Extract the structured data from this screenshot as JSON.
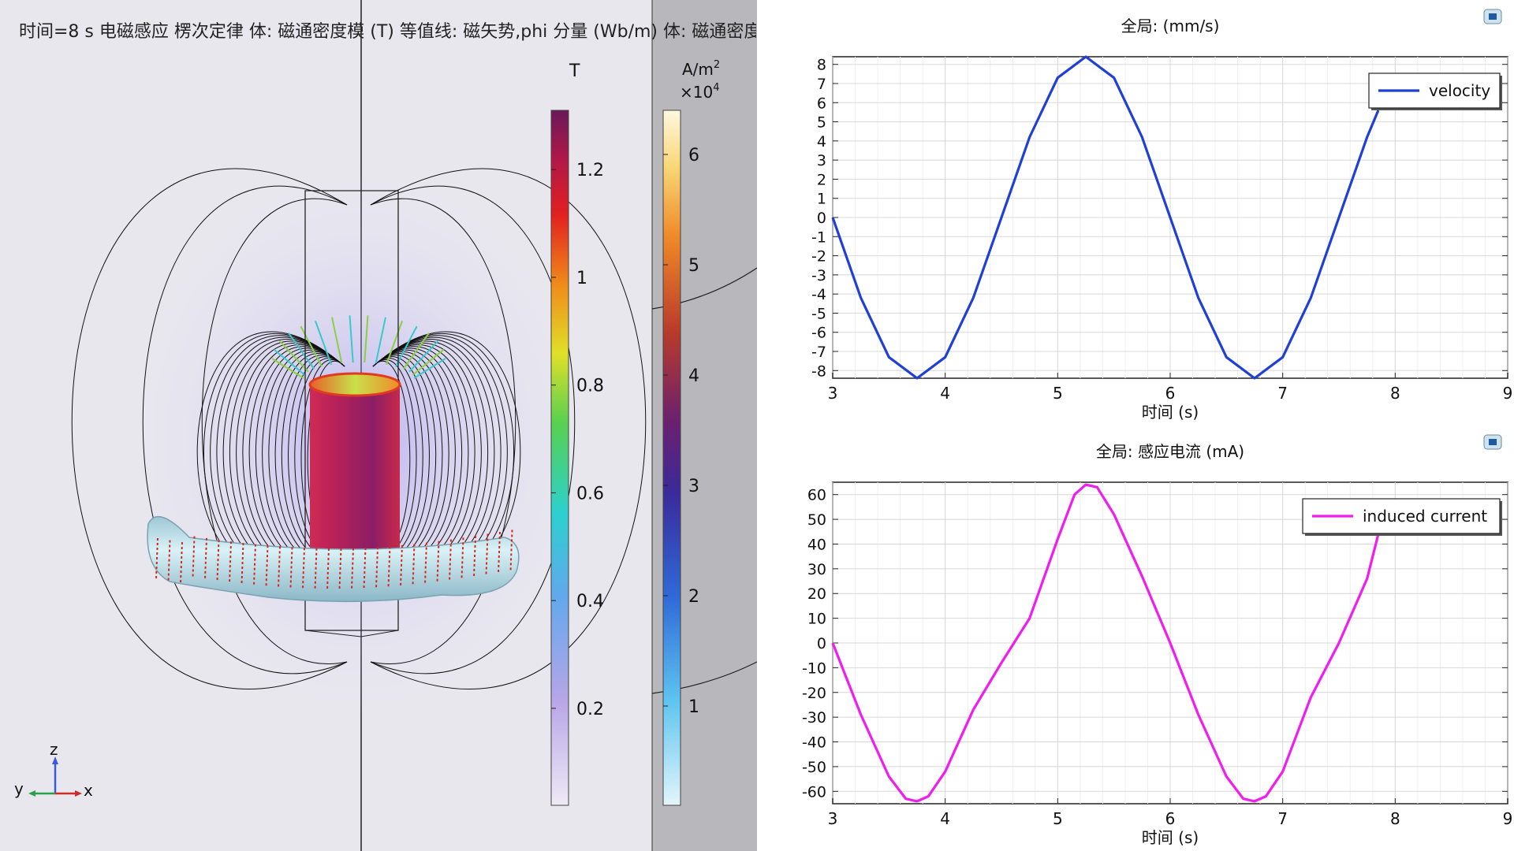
{
  "simulation": {
    "title": "时间=8 s 电磁感应 楞次定律 体: 磁通密度模 (T) 等值线: 磁矢势,phi 分量 (Wb/m) 体: 磁通密度",
    "colorbar_T": {
      "unit": "T",
      "ticks": [
        "1.2",
        "1",
        "0.8",
        "0.6",
        "0.4",
        "0.2"
      ],
      "tick_values": [
        1.2,
        1.0,
        0.8,
        0.6,
        0.4,
        0.2
      ],
      "range": [
        0.02,
        1.31
      ]
    },
    "colorbar_J": {
      "unit": "A/m",
      "unit_sup": "2",
      "scale": "×10",
      "scale_sup": "4",
      "ticks": [
        "6",
        "5",
        "4",
        "3",
        "2",
        "1"
      ],
      "tick_values": [
        6,
        5,
        4,
        3,
        2,
        1
      ],
      "range": [
        0.1,
        6.4
      ]
    },
    "triad": {
      "z": "z",
      "y": "y",
      "x": "x"
    }
  },
  "chart_data": [
    {
      "type": "line",
      "title": "全局: (mm/s)",
      "xlabel": "时间 (s)",
      "ylabel": "",
      "xlim": [
        3,
        9
      ],
      "ylim": [
        -8.4,
        8.4
      ],
      "x_ticks": [
        3,
        4,
        5,
        6,
        7,
        8,
        9
      ],
      "y_ticks": [
        8,
        7,
        6,
        5,
        4,
        3,
        2,
        1,
        0,
        -1,
        -2,
        -3,
        -4,
        -5,
        -6,
        -7,
        -8
      ],
      "grid": true,
      "legend_position": "top-right",
      "series": [
        {
          "name": "velocity",
          "color": "#1f3fd6",
          "x": [
            3.0,
            3.25,
            3.5,
            3.75,
            4.0,
            4.25,
            4.5,
            4.75,
            5.0,
            5.25,
            5.5,
            5.75,
            6.0,
            6.25,
            6.5,
            6.75,
            7.0,
            7.25,
            7.5,
            7.75,
            7.85
          ],
          "y": [
            0.0,
            -4.2,
            -7.3,
            -8.4,
            -7.3,
            -4.2,
            0.0,
            4.2,
            7.3,
            8.4,
            7.3,
            4.2,
            0.0,
            -4.2,
            -7.3,
            -8.4,
            -7.3,
            -4.2,
            0.0,
            4.2,
            5.6
          ]
        }
      ]
    },
    {
      "type": "line",
      "title": "全局: 感应电流 (mA)",
      "xlabel": "时间 (s)",
      "ylabel": "",
      "xlim": [
        3,
        9
      ],
      "ylim": [
        -65,
        65
      ],
      "x_ticks": [
        3,
        4,
        5,
        6,
        7,
        8,
        9
      ],
      "y_ticks": [
        60,
        50,
        40,
        30,
        20,
        10,
        0,
        -10,
        -20,
        -30,
        -40,
        -50,
        -60
      ],
      "grid": true,
      "legend_position": "top-right",
      "series": [
        {
          "name": "induced current",
          "color": "#f01cf0",
          "x": [
            3.0,
            3.25,
            3.5,
            3.65,
            3.75,
            3.85,
            4.0,
            4.25,
            4.5,
            4.75,
            5.0,
            5.15,
            5.25,
            5.35,
            5.5,
            5.75,
            6.0,
            6.25,
            6.5,
            6.65,
            6.75,
            6.85,
            7.0,
            7.25,
            7.5,
            7.75,
            7.85
          ],
          "y": [
            0.0,
            -29.0,
            -54.0,
            -63.0,
            -64.0,
            -62.0,
            -52.0,
            -27.0,
            -8.0,
            10.0,
            42.0,
            60.0,
            64.0,
            63.0,
            52.0,
            27.0,
            0.0,
            -29.0,
            -54.0,
            -63.0,
            -64.0,
            -62.0,
            -52.0,
            -22.0,
            0.0,
            26.0,
            44.0
          ]
        }
      ]
    }
  ]
}
